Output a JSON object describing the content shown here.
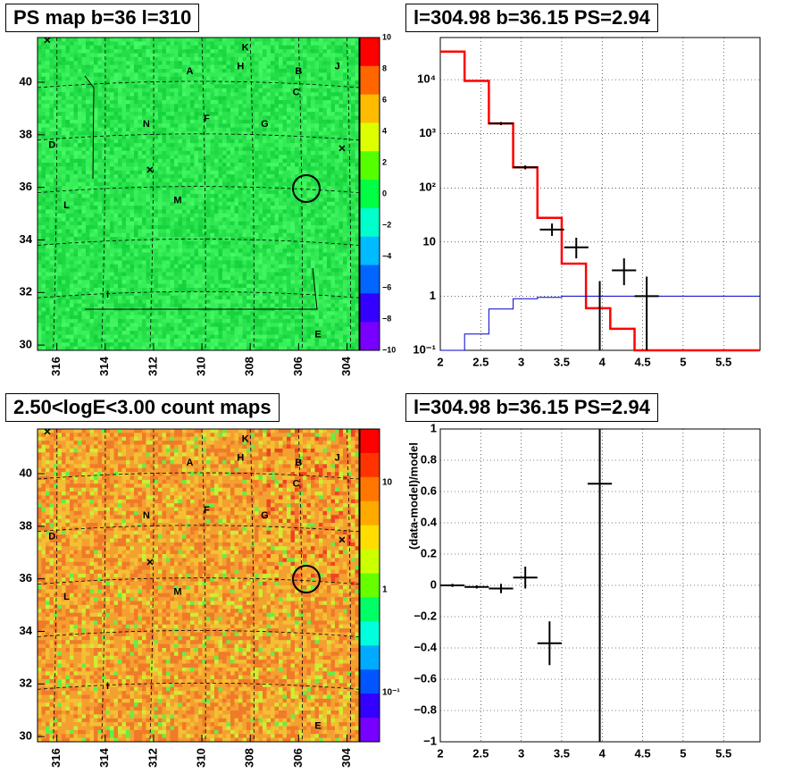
{
  "panels": {
    "ps_map_title": "PS map b=36 l=310",
    "count_map_title": "2.50<logE<3.00 count maps",
    "spectrum_title": "l=304.98 b=36.15 PS=2.94",
    "residual_title": "l=304.98 b=36.15 PS=2.94"
  },
  "colors": {
    "model": "#ff0000",
    "background_model": "#0000cc",
    "data": "#000000",
    "ps_map_fill": "#22ee44",
    "count_map_fill": "#f0a030"
  },
  "chart_data": [
    {
      "type": "heatmap",
      "name": "ps_map",
      "x_tick_labels": [
        "316",
        "314",
        "312",
        "310",
        "308",
        "306",
        "304"
      ],
      "y_tick_labels": [
        "30",
        "32",
        "34",
        "36",
        "38",
        "40"
      ],
      "colorbar_ticks": [
        "10",
        "8",
        "6",
        "4",
        "2",
        "0",
        "−2",
        "−4",
        "−6",
        "−8",
        "−10"
      ],
      "colorbar_range": [
        -10,
        10
      ],
      "source_labels": [
        {
          "label": "K",
          "l": 308.2,
          "b": 41.3
        },
        {
          "label": "A",
          "l": 310.5,
          "b": 40.4
        },
        {
          "label": "H",
          "l": 308.4,
          "b": 40.6
        },
        {
          "label": "B",
          "l": 306.0,
          "b": 40.4
        },
        {
          "label": "J",
          "l": 304.4,
          "b": 40.6
        },
        {
          "label": "C",
          "l": 306.1,
          "b": 39.6
        },
        {
          "label": "N",
          "l": 312.3,
          "b": 38.4
        },
        {
          "label": "F",
          "l": 309.8,
          "b": 38.6
        },
        {
          "label": "G",
          "l": 307.4,
          "b": 38.4
        },
        {
          "label": "D",
          "l": 316.2,
          "b": 37.6
        },
        {
          "label": "M",
          "l": 311.0,
          "b": 35.5
        },
        {
          "label": "L",
          "l": 315.6,
          "b": 35.3
        },
        {
          "label": "I",
          "l": 313.9,
          "b": 31.9
        },
        {
          "label": "E",
          "l": 305.2,
          "b": 30.4
        }
      ]
    },
    {
      "type": "heatmap",
      "name": "count_map",
      "x_tick_labels": [
        "316",
        "314",
        "312",
        "310",
        "308",
        "306",
        "304"
      ],
      "y_tick_labels": [
        "30",
        "32",
        "34",
        "36",
        "38",
        "40"
      ],
      "colorbar_ticks": [
        "10",
        "1",
        "10⁻¹"
      ],
      "colorbar_scale": "log"
    },
    {
      "type": "line",
      "name": "spectrum",
      "x_label": "",
      "y_label": "",
      "xlim": [
        2,
        5.95
      ],
      "ylim": [
        0.1,
        60000
      ],
      "y_scale": "log",
      "grid": true,
      "x_ticks": [
        "2",
        "2.5",
        "3",
        "3.5",
        "4",
        "4.5",
        "5",
        "5.5"
      ],
      "y_ticks": [
        "10⁻¹",
        "1",
        "10",
        "10²",
        "10³",
        "10⁴"
      ],
      "series": [
        {
          "type": "step",
          "bins": [
            2.0,
            2.3,
            2.6,
            2.9,
            3.2,
            3.5,
            3.8,
            4.1,
            4.4,
            5.95
          ],
          "values": [
            33000,
            9500,
            1550,
            240,
            28,
            4,
            0.6,
            0.25,
            0.1
          ]
        },
        {
          "type": "step",
          "bins": [
            2.0,
            2.3,
            2.6,
            2.9,
            3.2,
            3.5,
            3.8,
            4.1,
            4.4,
            5.95
          ],
          "values": [
            0.1,
            0.2,
            0.58,
            0.9,
            0.95,
            1.0,
            1.0,
            1.0,
            1.0
          ]
        },
        {
          "type": "errorbar",
          "points": [
            {
              "x": 2.75,
              "y": 1550,
              "xerr": 0.15,
              "ylow": 1450,
              "yhigh": 1650
            },
            {
              "x": 3.05,
              "y": 240,
              "xerr": 0.15,
              "ylow": 220,
              "yhigh": 260
            },
            {
              "x": 3.38,
              "y": 17,
              "xerr": 0.15,
              "ylow": 13,
              "yhigh": 22
            },
            {
              "x": 3.68,
              "y": 8,
              "xerr": 0.15,
              "ylow": 5,
              "yhigh": 12
            },
            {
              "x": 3.97,
              "y": 0.1,
              "xerr": 0.0,
              "ylow": 0.1,
              "yhigh": 1.9
            },
            {
              "x": 4.27,
              "y": 3,
              "xerr": 0.15,
              "ylow": 1.6,
              "yhigh": 5
            },
            {
              "x": 4.55,
              "y": 1,
              "xerr": 0.15,
              "ylow": 0.1,
              "yhigh": 2.3
            }
          ]
        }
      ]
    },
    {
      "type": "scatter",
      "name": "residual",
      "y_label": "(data-model)/model",
      "xlim": [
        2,
        5.95
      ],
      "ylim": [
        -1,
        1
      ],
      "grid": true,
      "x_ticks": [
        "2",
        "2.5",
        "3",
        "3.5",
        "4",
        "4.5",
        "5",
        "5.5"
      ],
      "y_ticks": [
        "−1",
        "−0.8",
        "−0.6",
        "−0.4",
        "−0.2",
        "0",
        "0.2",
        "0.4",
        "0.6",
        "0.8",
        "1"
      ],
      "points": [
        {
          "x": 2.15,
          "y": 0.0,
          "xerr": 0.15,
          "yerr": 0.01
        },
        {
          "x": 2.45,
          "y": -0.01,
          "xerr": 0.15,
          "yerr": 0.01
        },
        {
          "x": 2.75,
          "y": -0.02,
          "xerr": 0.15,
          "yerr": 0.03
        },
        {
          "x": 3.05,
          "y": 0.05,
          "xerr": 0.15,
          "yerr": 0.07
        },
        {
          "x": 3.35,
          "y": -0.37,
          "xerr": 0.15,
          "yerr": 0.14
        },
        {
          "x": 3.97,
          "y": 0.65,
          "xerr": 0.15,
          "yerr": 1.7
        }
      ]
    }
  ]
}
